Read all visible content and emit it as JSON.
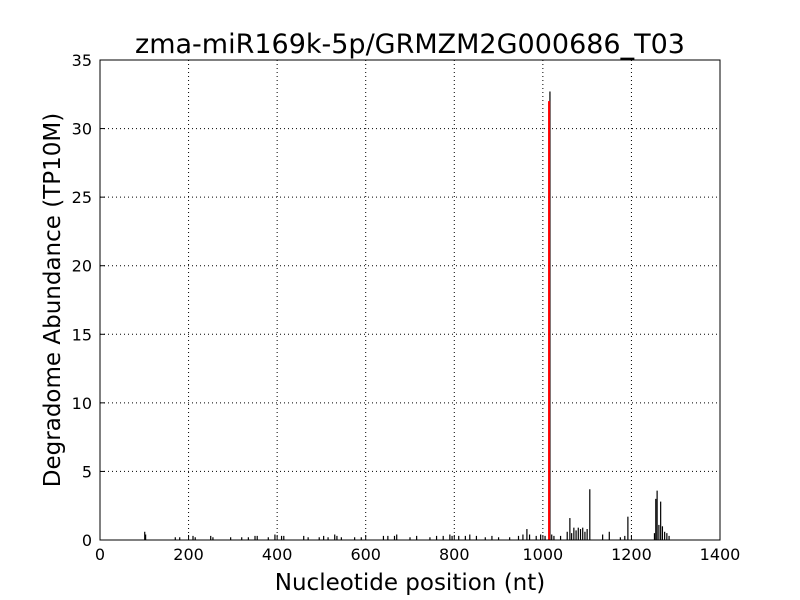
{
  "chart_data": {
    "type": "bar",
    "title": "zma-miR169k-5p/GRMZM2G000686_T03",
    "x_label": "Nucleotide position (nt)",
    "y_label": "Degradome Abundance (TP10M)",
    "xlim": [
      0,
      1400
    ],
    "xticks": [
      0,
      200,
      400,
      600,
      800,
      1000,
      1200,
      1400
    ],
    "ylim": [
      0,
      35
    ],
    "yticks": [
      0,
      5,
      10,
      15,
      20,
      25,
      30,
      35
    ],
    "grid": true,
    "series": [
      {
        "color": "#000000",
        "x": [
          101,
          103,
          170,
          180,
          210,
          215,
          250,
          255,
          295,
          320,
          335,
          350,
          355,
          380,
          395,
          410,
          415,
          460,
          470,
          495,
          505,
          515,
          530,
          535,
          545,
          575,
          590,
          640,
          650,
          665,
          670,
          700,
          715,
          745,
          760,
          775,
          790,
          795,
          810,
          825,
          835,
          850,
          870,
          885,
          900,
          925,
          945,
          955,
          964,
          970,
          985,
          995,
          1005,
          1016,
          1020,
          1025,
          1040,
          1055,
          1061,
          1065,
          1070,
          1075,
          1080,
          1085,
          1090,
          1095,
          1100,
          1106,
          1135,
          1150,
          1175,
          1185,
          1192,
          1252,
          1255,
          1258,
          1262,
          1266,
          1270,
          1275,
          1280,
          1285
        ],
        "values": [
          0.6,
          0.4,
          0.2,
          0.2,
          0.3,
          0.2,
          0.3,
          0.2,
          0.2,
          0.2,
          0.2,
          0.3,
          0.3,
          0.2,
          0.4,
          0.3,
          0.3,
          0.3,
          0.2,
          0.2,
          0.3,
          0.2,
          0.4,
          0.3,
          0.2,
          0.2,
          0.2,
          0.3,
          0.3,
          0.3,
          0.4,
          0.2,
          0.3,
          0.2,
          0.3,
          0.3,
          0.4,
          0.3,
          0.3,
          0.3,
          0.4,
          0.3,
          0.2,
          0.3,
          0.2,
          0.2,
          0.3,
          0.4,
          0.8,
          0.4,
          0.3,
          0.4,
          0.3,
          32.7,
          0.4,
          0.3,
          0.3,
          0.6,
          1.6,
          0.5,
          0.9,
          0.7,
          0.9,
          0.8,
          0.9,
          0.6,
          0.8,
          3.7,
          0.4,
          0.6,
          0.2,
          0.3,
          1.7,
          0.5,
          3.0,
          3.6,
          1.1,
          2.8,
          1.0,
          0.6,
          0.5,
          0.3
        ]
      },
      {
        "color": "#ff0000",
        "x": [
          1014
        ],
        "values": [
          32
        ]
      }
    ]
  }
}
